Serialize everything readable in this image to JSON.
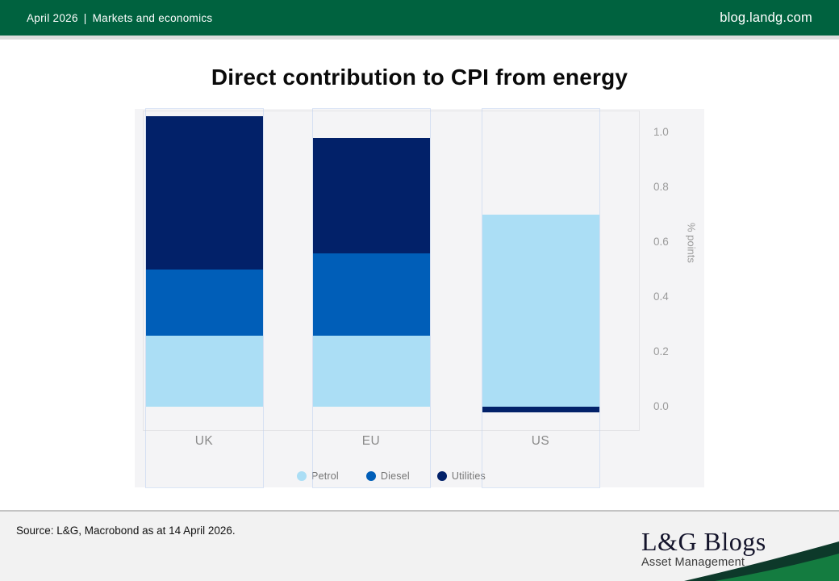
{
  "header": {
    "date": "April 2026",
    "divider": "|",
    "section": "Markets and economics",
    "site": "blog.landg.com",
    "bg_color": "#00623f"
  },
  "title": "Direct contribution to CPI from energy",
  "chart_data": {
    "type": "bar",
    "stacked": true,
    "categories": [
      "UK",
      "EU",
      "US"
    ],
    "series": [
      {
        "name": "Petrol",
        "color": "#abdef5",
        "values": [
          0.26,
          0.26,
          0.7
        ]
      },
      {
        "name": "Diesel",
        "color": "#005eb8",
        "values": [
          0.24,
          0.3,
          0.0
        ]
      },
      {
        "name": "Utilities",
        "color": "#022169",
        "values": [
          0.56,
          0.42,
          -0.02
        ]
      }
    ],
    "ylabel": "% points",
    "yticks": [
      0.0,
      0.2,
      0.4,
      0.6,
      0.8,
      1.0
    ],
    "ytick_labels": [
      "0.0",
      "0.2",
      "0.4",
      "0.6",
      "0.8",
      "1.0"
    ],
    "ylim": [
      -0.09,
      1.08
    ],
    "legend_position": "bottom",
    "grid": false,
    "plot_background": "#f4f4f6"
  },
  "footer": {
    "source": "Source: L&G, Macrobond as at 14 April 2026.",
    "logo_title": "L&G Blogs",
    "logo_subtitle": "Asset Management",
    "swoosh_dark": "#0d392a",
    "swoosh_green": "#147c40"
  }
}
